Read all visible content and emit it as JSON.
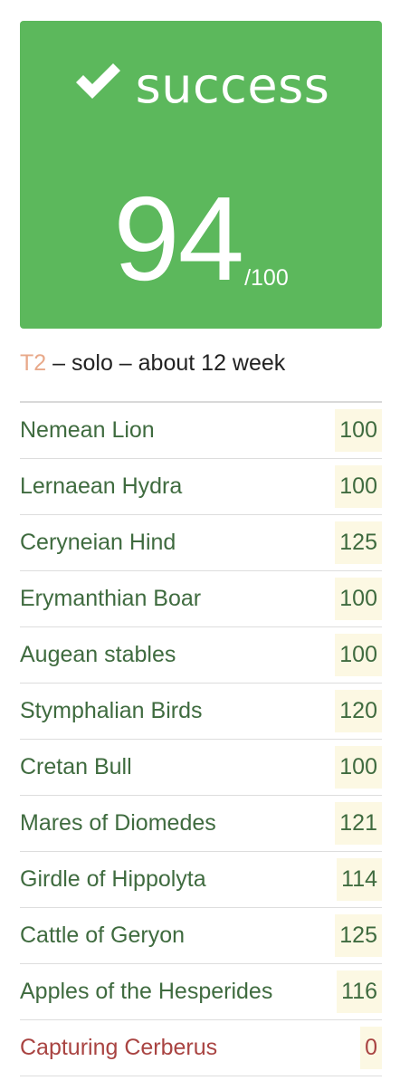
{
  "result": {
    "status": "success",
    "score": "94",
    "max_score": "/100",
    "icon": "check-icon",
    "color": "#5cb85c"
  },
  "meta": {
    "tier": "T2",
    "separator_1": " – ",
    "mode": "solo",
    "separator_2": " – ",
    "duration": "about 12 week"
  },
  "tasks": [
    {
      "name": "Nemean Lion",
      "score": "100",
      "status": "success"
    },
    {
      "name": "Lernaean Hydra",
      "score": "100",
      "status": "success"
    },
    {
      "name": "Ceryneian Hind",
      "score": "125",
      "status": "success"
    },
    {
      "name": "Erymanthian Boar",
      "score": "100",
      "status": "success"
    },
    {
      "name": "Augean stables",
      "score": "100",
      "status": "success"
    },
    {
      "name": "Stymphalian Birds",
      "score": "120",
      "status": "success"
    },
    {
      "name": "Cretan Bull",
      "score": "100",
      "status": "success"
    },
    {
      "name": "Mares of Diomedes",
      "score": "121",
      "status": "success"
    },
    {
      "name": "Girdle of Hippolyta",
      "score": "114",
      "status": "success"
    },
    {
      "name": "Cattle of Geryon",
      "score": "125",
      "status": "success"
    },
    {
      "name": "Apples of the Hesperides",
      "score": "116",
      "status": "success"
    },
    {
      "name": "Capturing Cerberus",
      "score": "0",
      "status": "failed"
    }
  ],
  "colors": {
    "success_text": "#3f6b3f",
    "failed_text": "#a94442",
    "score_cell_bg": "#fcf8e3",
    "tier": "#e8a98a"
  }
}
